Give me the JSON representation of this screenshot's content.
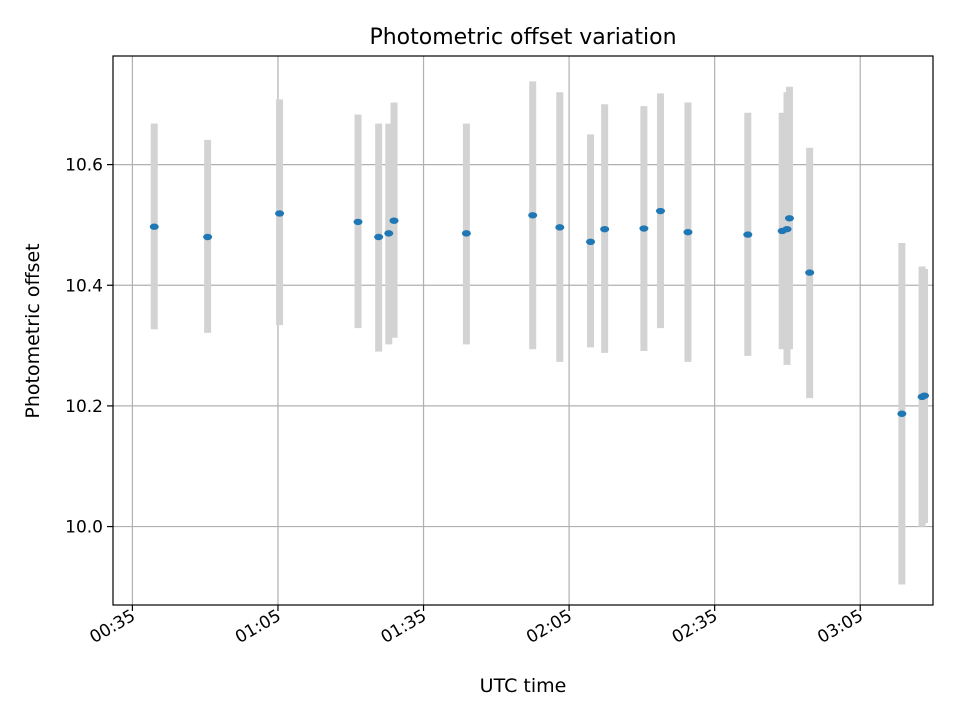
{
  "chart_data": {
    "type": "scatter",
    "title": "Photometric offset variation",
    "xlabel": "UTC time",
    "ylabel": "Photometric offset",
    "x_ticks": [
      "00:35",
      "01:05",
      "01:35",
      "02:05",
      "02:35",
      "03:05"
    ],
    "x_range": [
      "00:31",
      "03:20"
    ],
    "y_ticks": [
      "10.0",
      "10.2",
      "10.4",
      "10.6"
    ],
    "ylim": [
      9.87,
      10.78
    ],
    "grid": true,
    "legend": "none",
    "marker_color": "#1f77b4",
    "errorbar_color": "#d3d3d3",
    "points": [
      {
        "time": "00:39:30",
        "value": 10.497,
        "lower": 10.327,
        "upper": 10.668
      },
      {
        "time": "00:50:30",
        "value": 10.48,
        "lower": 10.321,
        "upper": 10.641
      },
      {
        "time": "01:05:20",
        "value": 10.519,
        "lower": 10.334,
        "upper": 10.708
      },
      {
        "time": "01:21:30",
        "value": 10.505,
        "lower": 10.329,
        "upper": 10.683
      },
      {
        "time": "01:25:45",
        "value": 10.48,
        "lower": 10.29,
        "upper": 10.668
      },
      {
        "time": "01:27:50",
        "value": 10.486,
        "lower": 10.302,
        "upper": 10.668
      },
      {
        "time": "01:28:55",
        "value": 10.507,
        "lower": 10.313,
        "upper": 10.703
      },
      {
        "time": "01:43:50",
        "value": 10.486,
        "lower": 10.302,
        "upper": 10.668
      },
      {
        "time": "01:57:30",
        "value": 10.516,
        "lower": 10.294,
        "upper": 10.738
      },
      {
        "time": "02:03:05",
        "value": 10.496,
        "lower": 10.273,
        "upper": 10.72
      },
      {
        "time": "02:09:25",
        "value": 10.472,
        "lower": 10.297,
        "upper": 10.65
      },
      {
        "time": "02:12:20",
        "value": 10.493,
        "lower": 10.288,
        "upper": 10.7
      },
      {
        "time": "02:20:25",
        "value": 10.494,
        "lower": 10.291,
        "upper": 10.697
      },
      {
        "time": "02:23:50",
        "value": 10.523,
        "lower": 10.329,
        "upper": 10.718
      },
      {
        "time": "02:29:30",
        "value": 10.488,
        "lower": 10.273,
        "upper": 10.703
      },
      {
        "time": "02:41:50",
        "value": 10.484,
        "lower": 10.283,
        "upper": 10.686
      },
      {
        "time": "02:48:55",
        "value": 10.49,
        "lower": 10.294,
        "upper": 10.686
      },
      {
        "time": "02:49:55",
        "value": 10.493,
        "lower": 10.268,
        "upper": 10.72
      },
      {
        "time": "02:50:25",
        "value": 10.511,
        "lower": 10.294,
        "upper": 10.729
      },
      {
        "time": "02:54:35",
        "value": 10.421,
        "lower": 10.213,
        "upper": 10.628
      },
      {
        "time": "03:13:35",
        "value": 10.187,
        "lower": 9.904,
        "upper": 10.47
      },
      {
        "time": "03:17:45",
        "value": 10.215,
        "lower": 10.0,
        "upper": 10.431
      },
      {
        "time": "03:18:15",
        "value": 10.217,
        "lower": 10.006,
        "upper": 10.427
      }
    ]
  }
}
